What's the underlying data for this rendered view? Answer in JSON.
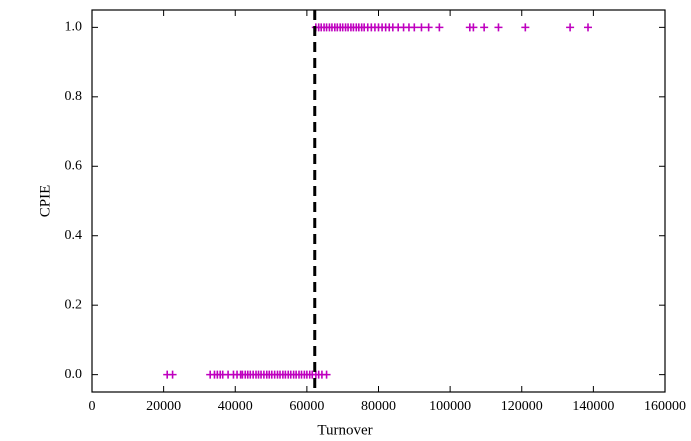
{
  "chart_data": {
    "type": "scatter",
    "xlabel": "Turnover",
    "ylabel": "CPIE",
    "color": "#bf00bf",
    "marker": "plus",
    "x": [
      21000,
      22500,
      33000,
      34200,
      35000,
      35800,
      36500,
      38000,
      39500,
      40500,
      41500,
      42000,
      42800,
      43500,
      44200,
      45000,
      45800,
      46500,
      47200,
      48000,
      48800,
      49500,
      50200,
      51000,
      51800,
      52500,
      53300,
      54000,
      54800,
      55500,
      56300,
      57000,
      57800,
      58500,
      59300,
      60000,
      60800,
      61500,
      62500,
      63300,
      64200,
      65500,
      62500,
      63300,
      64000,
      64800,
      65500,
      66300,
      67000,
      67800,
      68500,
      69300,
      70000,
      70800,
      71500,
      72300,
      73000,
      73800,
      74500,
      75300,
      76000,
      77000,
      78000,
      79000,
      80000,
      81000,
      82000,
      83000,
      84000,
      85500,
      87000,
      88500,
      90000,
      92000,
      94000,
      97000,
      105500,
      106500,
      109500,
      113500,
      121000,
      133500,
      138500
    ],
    "values": [
      0,
      0,
      0,
      0,
      0,
      0,
      0,
      0,
      0,
      0,
      0,
      0,
      0,
      0,
      0,
      0,
      0,
      0,
      0,
      0,
      0,
      0,
      0,
      0,
      0,
      0,
      0,
      0,
      0,
      0,
      0,
      0,
      0,
      0,
      0,
      0,
      0,
      0,
      0,
      0,
      0,
      0,
      1,
      1,
      1,
      1,
      1,
      1,
      1,
      1,
      1,
      1,
      1,
      1,
      1,
      1,
      1,
      1,
      1,
      1,
      1,
      1,
      1,
      1,
      1,
      1,
      1,
      1,
      1,
      1,
      1,
      1,
      1,
      1,
      1,
      1,
      1,
      1,
      1,
      1,
      1,
      1,
      1
    ],
    "threshold_x": 62200,
    "threshold_color": "#000000",
    "threshold_style": "dashed",
    "xlim": [
      0,
      160000
    ],
    "xticks": [
      0,
      20000,
      40000,
      60000,
      80000,
      100000,
      120000,
      140000,
      160000
    ],
    "ylim": [
      -0.05,
      1.05
    ],
    "yticks": [
      {
        "value": 0,
        "label": "0.0"
      },
      0.2,
      0.4,
      0.6,
      0.8,
      {
        "value": 1,
        "label": "1.0"
      }
    ],
    "grid": false
  }
}
